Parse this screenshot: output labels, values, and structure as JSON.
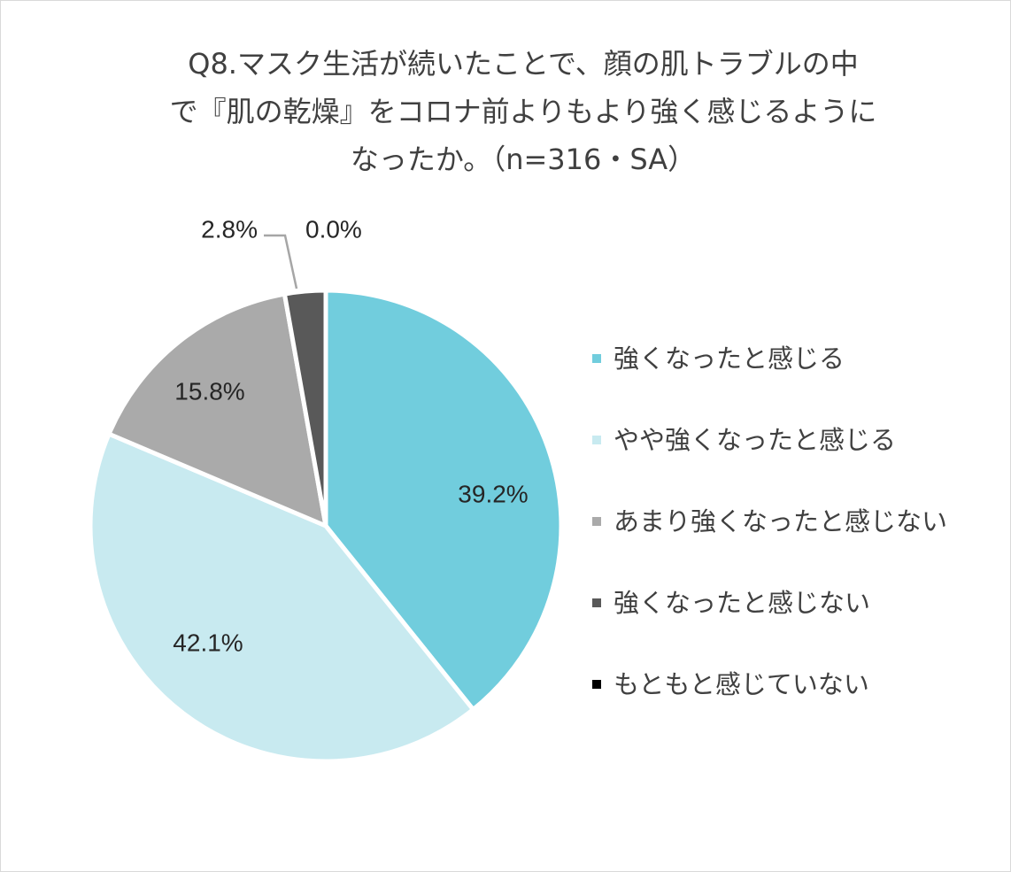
{
  "chart_data": {
    "type": "pie",
    "title_lines": [
      "Q8.マスク生活が続いたことで、顔の肌トラブルの中",
      "で『肌の乾燥』をコロナ前よりもより強く感じるように",
      "なったか。（n=316・SA）"
    ],
    "slices": [
      {
        "label": "強くなったと感じる",
        "value": 39.2,
        "value_label": "39.2%",
        "color": "#71cddd"
      },
      {
        "label": "やや強くなったと感じる",
        "value": 42.1,
        "value_label": "42.1%",
        "color": "#c8eaf0"
      },
      {
        "label": "あまり強くなったと感じない",
        "value": 15.8,
        "value_label": "15.8%",
        "color": "#aaaaaa"
      },
      {
        "label": "強くなったと感じない",
        "value": 2.8,
        "value_label": "2.8%",
        "color": "#595959"
      },
      {
        "label": "もともと感じていない",
        "value": 0.0,
        "value_label": "0.0%",
        "color": "#000000"
      }
    ],
    "legend_position": "right",
    "start_angle": "12 o'clock",
    "direction": "clockwise"
  }
}
